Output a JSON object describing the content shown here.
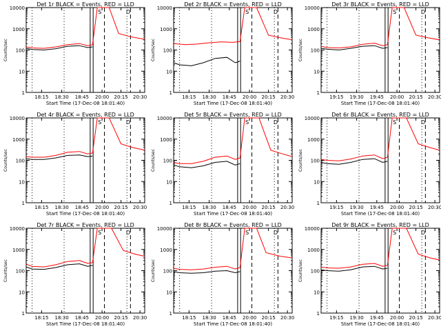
{
  "chart_data": [
    {
      "type": "line",
      "title": "Det 1r BLACK = Events, RED = LLD",
      "xlabel": "Start Time (17-Dec-08 18:01:40)",
      "ylabel": "Counts/sec",
      "xticks": [
        "18:15",
        "18:30",
        "18:45",
        "20:00",
        "20:15",
        "20:30"
      ],
      "yticks": [
        "1",
        "10",
        "100",
        "1000",
        "10000"
      ],
      "ylim": [
        1,
        10000
      ],
      "yscale": "log",
      "markers": [
        "S",
        "D"
      ],
      "series": [
        {
          "color": "#000000",
          "values": [
            [
              0,
              120
            ],
            [
              0.05,
              105
            ],
            [
              0.15,
              100
            ],
            [
              0.25,
              115
            ],
            [
              0.35,
              150
            ],
            [
              0.45,
              160
            ],
            [
              0.52,
              130
            ],
            [
              0.56,
              140
            ]
          ]
        },
        {
          "color": "#ff0000",
          "values": [
            [
              0,
              140
            ],
            [
              0.05,
              125
            ],
            [
              0.15,
              120
            ],
            [
              0.25,
              140
            ],
            [
              0.35,
              180
            ],
            [
              0.45,
              200
            ],
            [
              0.52,
              160
            ],
            [
              0.56,
              180
            ],
            [
              0.6,
              10000
            ],
            [
              0.7,
              10000
            ],
            [
              0.78,
              600
            ],
            [
              0.88,
              420
            ],
            [
              1.0,
              320
            ]
          ]
        }
      ]
    },
    {
      "type": "line",
      "title": "Det 2r BLACK = Events, RED = LLD",
      "xlabel": "Start Time (17-Dec-08 18:01:40)",
      "ylabel": "Counts/sec",
      "xticks": [
        "18:15",
        "18:30",
        "18:45",
        "20:00",
        "20:15",
        "20:30"
      ],
      "yticks": [
        "1",
        "10",
        "100",
        "1000",
        "10000"
      ],
      "ylim": [
        1,
        10000
      ],
      "yscale": "log",
      "markers": [
        "S",
        "D"
      ],
      "series": [
        {
          "color": "#000000",
          "values": [
            [
              0,
              25
            ],
            [
              0.05,
              20
            ],
            [
              0.15,
              18
            ],
            [
              0.25,
              25
            ],
            [
              0.35,
              40
            ],
            [
              0.45,
              45
            ],
            [
              0.52,
              25
            ],
            [
              0.56,
              30
            ]
          ]
        },
        {
          "color": "#ff0000",
          "values": [
            [
              0,
              200
            ],
            [
              0.1,
              180
            ],
            [
              0.2,
              190
            ],
            [
              0.3,
              220
            ],
            [
              0.4,
              240
            ],
            [
              0.5,
              230
            ],
            [
              0.56,
              250
            ],
            [
              0.6,
              10000
            ],
            [
              0.7,
              10000
            ],
            [
              0.8,
              500
            ],
            [
              0.9,
              380
            ],
            [
              1.0,
              300
            ]
          ]
        }
      ]
    },
    {
      "type": "line",
      "title": "Det 3r BLACK = Events, RED = LLD",
      "xlabel": "Start Time (17-Dec-08 18:01:40)",
      "ylabel": "Counts/sec",
      "xticks": [
        "19:15",
        "19:30",
        "19:45",
        "20:00",
        "20:15",
        "20:30"
      ],
      "yticks": [
        "1",
        "10",
        "100",
        "1000",
        "10000"
      ],
      "ylim": [
        1,
        10000
      ],
      "yscale": "log",
      "markers": [
        "S",
        "D"
      ],
      "series": [
        {
          "color": "#000000",
          "values": [
            [
              0,
              120
            ],
            [
              0.05,
              110
            ],
            [
              0.15,
              100
            ],
            [
              0.25,
              120
            ],
            [
              0.35,
              150
            ],
            [
              0.45,
              160
            ],
            [
              0.52,
              120
            ],
            [
              0.56,
              130
            ]
          ]
        },
        {
          "color": "#ff0000",
          "values": [
            [
              0,
              150
            ],
            [
              0.05,
              130
            ],
            [
              0.15,
              125
            ],
            [
              0.25,
              140
            ],
            [
              0.35,
              185
            ],
            [
              0.45,
              210
            ],
            [
              0.52,
              160
            ],
            [
              0.56,
              180
            ],
            [
              0.6,
              10000
            ],
            [
              0.7,
              10000
            ],
            [
              0.8,
              500
            ],
            [
              0.9,
              380
            ],
            [
              1.0,
              300
            ]
          ]
        }
      ]
    },
    {
      "type": "line",
      "title": "Det 4r BLACK = Events, RED = LLD",
      "xlabel": "Start Time (17-Dec-08 18:01:40)",
      "ylabel": "Counts/sec",
      "xticks": [
        "18:15",
        "18:30",
        "18:45",
        "20:00",
        "20:15",
        "20:30"
      ],
      "yticks": [
        "1",
        "10",
        "100",
        "1000",
        "10000"
      ],
      "ylim": [
        1,
        10000
      ],
      "yscale": "log",
      "markers": [
        "S",
        "D"
      ],
      "series": [
        {
          "color": "#000000",
          "values": [
            [
              0,
              120
            ],
            [
              0.05,
              110
            ],
            [
              0.15,
              110
            ],
            [
              0.25,
              130
            ],
            [
              0.35,
              170
            ],
            [
              0.45,
              180
            ],
            [
              0.52,
              150
            ],
            [
              0.56,
              160
            ]
          ]
        },
        {
          "color": "#ff0000",
          "values": [
            [
              0,
              150
            ],
            [
              0.05,
              140
            ],
            [
              0.15,
              140
            ],
            [
              0.25,
              170
            ],
            [
              0.35,
              240
            ],
            [
              0.45,
              260
            ],
            [
              0.52,
              200
            ],
            [
              0.56,
              220
            ],
            [
              0.6,
              10000
            ],
            [
              0.7,
              10000
            ],
            [
              0.8,
              600
            ],
            [
              0.9,
              400
            ],
            [
              1.0,
              300
            ]
          ]
        }
      ]
    },
    {
      "type": "line",
      "title": "Det 5r BLACK = Events, RED = LLD",
      "xlabel": "Start Time (17-Dec-08 18:01:40)",
      "ylabel": "Counts/sec",
      "xticks": [
        "18:15",
        "18:30",
        "18:45",
        "20:00",
        "20:15",
        "20:30"
      ],
      "yticks": [
        "1",
        "10",
        "100",
        "1000",
        "10000"
      ],
      "ylim": [
        1,
        10000
      ],
      "yscale": "log",
      "markers": [
        "S",
        "D"
      ],
      "series": [
        {
          "color": "#000000",
          "values": [
            [
              0,
              60
            ],
            [
              0.05,
              50
            ],
            [
              0.15,
              45
            ],
            [
              0.25,
              55
            ],
            [
              0.35,
              80
            ],
            [
              0.45,
              90
            ],
            [
              0.52,
              60
            ],
            [
              0.56,
              70
            ]
          ]
        },
        {
          "color": "#ff0000",
          "values": [
            [
              0,
              80
            ],
            [
              0.05,
              70
            ],
            [
              0.15,
              70
            ],
            [
              0.25,
              90
            ],
            [
              0.35,
              140
            ],
            [
              0.45,
              160
            ],
            [
              0.52,
              110
            ],
            [
              0.56,
              130
            ],
            [
              0.6,
              10000
            ],
            [
              0.72,
              10000
            ],
            [
              0.82,
              300
            ],
            [
              0.92,
              200
            ],
            [
              1.0,
              150
            ]
          ]
        }
      ]
    },
    {
      "type": "line",
      "title": "Det 6r BLACK = Events, RED = LLD",
      "xlabel": "Start Time (17-Dec-08 18:01:40)",
      "ylabel": "Counts/sec",
      "xticks": [
        "19:15",
        "19:30",
        "19:45",
        "20:00",
        "20:15",
        "20:30"
      ],
      "yticks": [
        "1",
        "10",
        "100",
        "1000",
        "10000"
      ],
      "ylim": [
        1,
        10000
      ],
      "yscale": "log",
      "markers": [
        "S",
        "D"
      ],
      "series": [
        {
          "color": "#000000",
          "values": [
            [
              0,
              80
            ],
            [
              0.05,
              70
            ],
            [
              0.15,
              65
            ],
            [
              0.25,
              80
            ],
            [
              0.35,
              110
            ],
            [
              0.45,
              120
            ],
            [
              0.52,
              80
            ],
            [
              0.56,
              90
            ]
          ]
        },
        {
          "color": "#ff0000",
          "values": [
            [
              0,
              110
            ],
            [
              0.05,
              100
            ],
            [
              0.15,
              95
            ],
            [
              0.25,
              115
            ],
            [
              0.35,
              160
            ],
            [
              0.45,
              180
            ],
            [
              0.52,
              120
            ],
            [
              0.56,
              140
            ],
            [
              0.6,
              10000
            ],
            [
              0.72,
              10000
            ],
            [
              0.82,
              600
            ],
            [
              0.92,
              400
            ],
            [
              1.0,
              300
            ]
          ]
        }
      ]
    },
    {
      "type": "line",
      "title": "Det 7r BLACK = Events, RED = LLD",
      "xlabel": "Start Time (17-Dec-08 18:01:40)",
      "ylabel": "Counts/sec",
      "xticks": [
        "18:15",
        "18:30",
        "18:45",
        "20:00",
        "20:15",
        "20:30"
      ],
      "yticks": [
        "1",
        "10",
        "100",
        "1000",
        "10000"
      ],
      "ylim": [
        1,
        10000
      ],
      "yscale": "log",
      "markers": [
        "S",
        "D"
      ],
      "series": [
        {
          "color": "#000000",
          "values": [
            [
              0,
              150
            ],
            [
              0.05,
              120
            ],
            [
              0.15,
              115
            ],
            [
              0.25,
              140
            ],
            [
              0.35,
              190
            ],
            [
              0.45,
              210
            ],
            [
              0.52,
              160
            ],
            [
              0.56,
              180
            ]
          ]
        },
        {
          "color": "#ff0000",
          "values": [
            [
              0,
              200
            ],
            [
              0.05,
              160
            ],
            [
              0.15,
              150
            ],
            [
              0.25,
              190
            ],
            [
              0.35,
              270
            ],
            [
              0.45,
              300
            ],
            [
              0.52,
              220
            ],
            [
              0.56,
              240
            ],
            [
              0.6,
              10000
            ],
            [
              0.72,
              10000
            ],
            [
              0.82,
              900
            ],
            [
              0.92,
              600
            ],
            [
              1.0,
              480
            ]
          ]
        }
      ]
    },
    {
      "type": "line",
      "title": "Det 8r BLACK = Events, RED = LLD",
      "xlabel": "Start Time (17-Dec-08 18:01:40)",
      "ylabel": "Counts/sec",
      "xticks": [
        "18:15",
        "18:30",
        "18:45",
        "20:00",
        "20:15",
        "20:30"
      ],
      "yticks": [
        "1",
        "10",
        "100",
        "1000",
        "10000"
      ],
      "ylim": [
        1,
        10000
      ],
      "yscale": "log",
      "markers": [
        "S",
        "D"
      ],
      "series": [
        {
          "color": "#000000",
          "values": [
            [
              0,
              90
            ],
            [
              0.05,
              80
            ],
            [
              0.15,
              75
            ],
            [
              0.25,
              80
            ],
            [
              0.35,
              95
            ],
            [
              0.45,
              100
            ],
            [
              0.52,
              80
            ],
            [
              0.56,
              90
            ]
          ]
        },
        {
          "color": "#ff0000",
          "values": [
            [
              0,
              130
            ],
            [
              0.05,
              115
            ],
            [
              0.15,
              110
            ],
            [
              0.25,
              120
            ],
            [
              0.35,
              145
            ],
            [
              0.45,
              160
            ],
            [
              0.52,
              120
            ],
            [
              0.56,
              140
            ],
            [
              0.6,
              10000
            ],
            [
              0.7,
              10000
            ],
            [
              0.78,
              700
            ],
            [
              0.9,
              480
            ],
            [
              1.0,
              400
            ]
          ]
        }
      ]
    },
    {
      "type": "line",
      "title": "Det 9r BLACK = Events, RED = LLD",
      "xlabel": "Start Time (17-Dec-08 18:01:40)",
      "ylabel": "Counts/sec",
      "xticks": [
        "19:15",
        "19:30",
        "19:45",
        "20:00",
        "20:15",
        "20:30"
      ],
      "yticks": [
        "1",
        "10",
        "100",
        "1000",
        "10000"
      ],
      "ylim": [
        1,
        10000
      ],
      "yscale": "log",
      "markers": [
        "S",
        "D"
      ],
      "series": [
        {
          "color": "#000000",
          "values": [
            [
              0,
              110
            ],
            [
              0.05,
              100
            ],
            [
              0.15,
              95
            ],
            [
              0.25,
              110
            ],
            [
              0.35,
              150
            ],
            [
              0.45,
              160
            ],
            [
              0.52,
              120
            ],
            [
              0.56,
              130
            ]
          ]
        },
        {
          "color": "#ff0000",
          "values": [
            [
              0,
              150
            ],
            [
              0.05,
              135
            ],
            [
              0.15,
              130
            ],
            [
              0.25,
              150
            ],
            [
              0.35,
              200
            ],
            [
              0.45,
              220
            ],
            [
              0.52,
              160
            ],
            [
              0.56,
              180
            ],
            [
              0.6,
              10000
            ],
            [
              0.72,
              10000
            ],
            [
              0.82,
              600
            ],
            [
              0.92,
              400
            ],
            [
              1.0,
              320
            ]
          ]
        }
      ]
    }
  ]
}
